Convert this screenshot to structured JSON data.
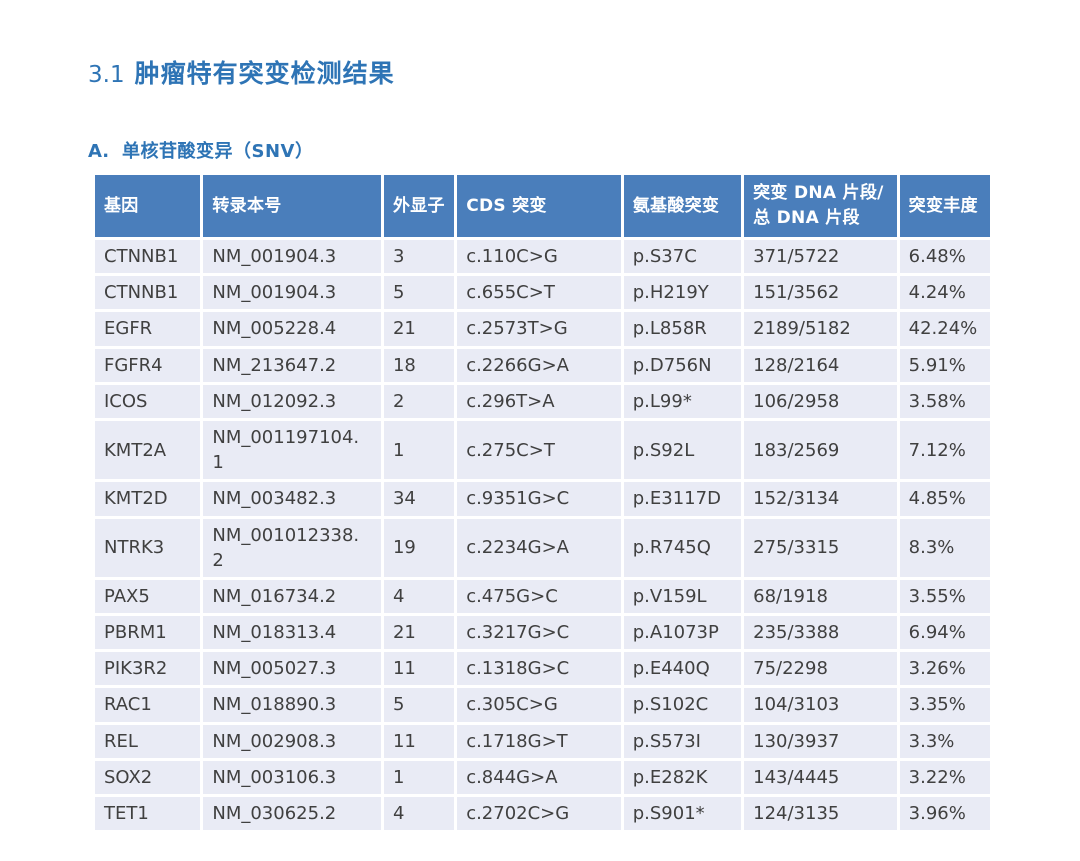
{
  "heading": {
    "number": "3.1",
    "title": "肿瘤特有突变检测结果"
  },
  "subheading": {
    "label": "A.",
    "title": "单核苷酸变异（SNV）"
  },
  "colors": {
    "accent_blue": "#2E74B5",
    "table_header_bg": "#4A7EBB",
    "table_row_bg": "#E9EBF5",
    "table_text": "#404040"
  },
  "table": {
    "columns": [
      "基因",
      "转录本号",
      "外显子",
      "CDS 突变",
      "氨基酸突变",
      "突变 DNA 片段/\n总 DNA 片段",
      "突变丰度"
    ],
    "rows": [
      {
        "gene": "CTNNB1",
        "transcript": "NM_001904.3",
        "exon": "3",
        "cds": "c.110C>G",
        "protein": "p.S37C",
        "fragments": "371/5722",
        "frequency": "6.48%"
      },
      {
        "gene": "CTNNB1",
        "transcript": "NM_001904.3",
        "exon": "5",
        "cds": "c.655C>T",
        "protein": "p.H219Y",
        "fragments": "151/3562",
        "frequency": "4.24%"
      },
      {
        "gene": "EGFR",
        "transcript": "NM_005228.4",
        "exon": "21",
        "cds": "c.2573T>G",
        "protein": "p.L858R",
        "fragments": "2189/5182",
        "frequency": "42.24%"
      },
      {
        "gene": "FGFR4",
        "transcript": "NM_213647.2",
        "exon": "18",
        "cds": "c.2266G>A",
        "protein": "p.D756N",
        "fragments": "128/2164",
        "frequency": "5.91%"
      },
      {
        "gene": "ICOS",
        "transcript": "NM_012092.3",
        "exon": "2",
        "cds": "c.296T>A",
        "protein": "p.L99*",
        "fragments": "106/2958",
        "frequency": "3.58%"
      },
      {
        "gene": "KMT2A",
        "transcript": "NM_001197104.1",
        "exon": "1",
        "cds": "c.275C>T",
        "protein": "p.S92L",
        "fragments": "183/2569",
        "frequency": "7.12%"
      },
      {
        "gene": "KMT2D",
        "transcript": "NM_003482.3",
        "exon": "34",
        "cds": "c.9351G>C",
        "protein": "p.E3117D",
        "fragments": "152/3134",
        "frequency": "4.85%"
      },
      {
        "gene": "NTRK3",
        "transcript": "NM_001012338.2",
        "exon": "19",
        "cds": "c.2234G>A",
        "protein": "p.R745Q",
        "fragments": "275/3315",
        "frequency": "8.3%"
      },
      {
        "gene": "PAX5",
        "transcript": "NM_016734.2",
        "exon": "4",
        "cds": "c.475G>C",
        "protein": "p.V159L",
        "fragments": "68/1918",
        "frequency": "3.55%"
      },
      {
        "gene": "PBRM1",
        "transcript": "NM_018313.4",
        "exon": "21",
        "cds": "c.3217G>C",
        "protein": "p.A1073P",
        "fragments": "235/3388",
        "frequency": "6.94%"
      },
      {
        "gene": "PIK3R2",
        "transcript": "NM_005027.3",
        "exon": "11",
        "cds": "c.1318G>C",
        "protein": "p.E440Q",
        "fragments": "75/2298",
        "frequency": "3.26%"
      },
      {
        "gene": "RAC1",
        "transcript": "NM_018890.3",
        "exon": "5",
        "cds": "c.305C>G",
        "protein": "p.S102C",
        "fragments": "104/3103",
        "frequency": "3.35%"
      },
      {
        "gene": "REL",
        "transcript": "NM_002908.3",
        "exon": "11",
        "cds": "c.1718G>T",
        "protein": "p.S573I",
        "fragments": "130/3937",
        "frequency": "3.3%"
      },
      {
        "gene": "SOX2",
        "transcript": "NM_003106.3",
        "exon": "1",
        "cds": "c.844G>A",
        "protein": "p.E282K",
        "fragments": "143/4445",
        "frequency": "3.22%"
      },
      {
        "gene": "TET1",
        "transcript": "NM_030625.2",
        "exon": "4",
        "cds": "c.2702C>G",
        "protein": "p.S901*",
        "fragments": "124/3135",
        "frequency": "3.96%"
      }
    ]
  }
}
